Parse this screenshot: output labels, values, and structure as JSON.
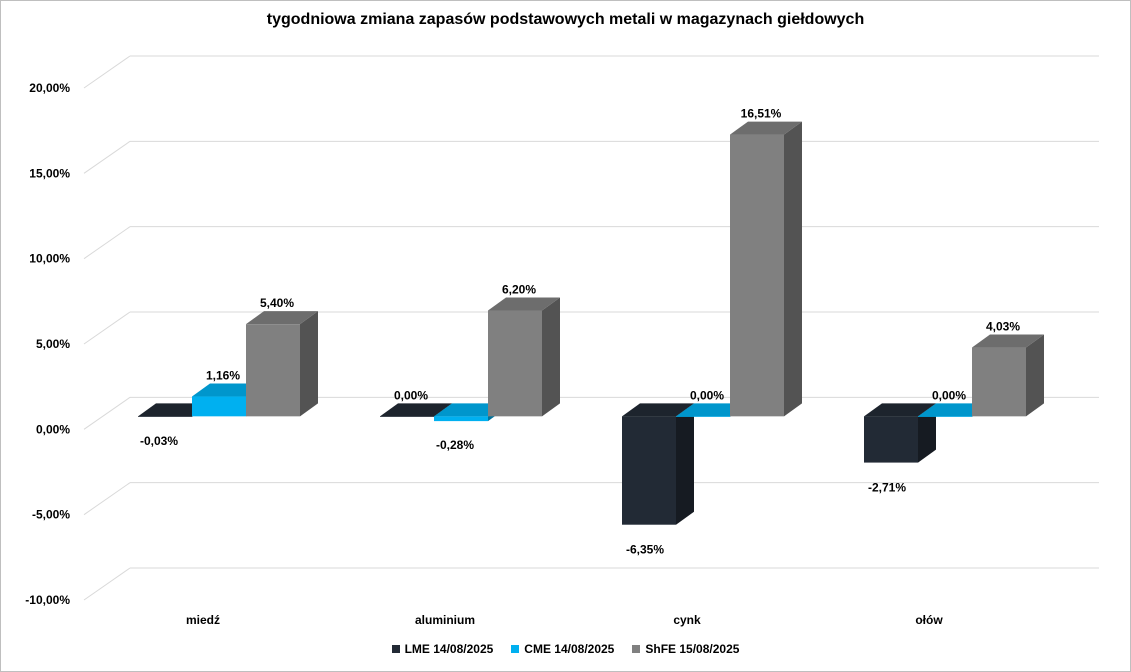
{
  "chart_data": {
    "type": "bar",
    "title": "tygodniowa zmiana zapasów podstawowych metali w magazynach giełdowych",
    "categories": [
      "miedź",
      "aluminium",
      "cynk",
      "ołów"
    ],
    "series": [
      {
        "name": "LME 14/08/2025",
        "color": "#222a35",
        "values": [
          -0.03,
          0.0,
          -6.35,
          -2.71
        ],
        "labels": [
          "-0,03%",
          "0,00%",
          "-6,35%",
          "-2,71%"
        ]
      },
      {
        "name": "CME 14/08/2025",
        "color": "#00b0f0",
        "values": [
          1.16,
          -0.28,
          0.0,
          0.0
        ],
        "labels": [
          "1,16%",
          "-0,28%",
          "0,00%",
          "0,00%"
        ]
      },
      {
        "name": "ShFE 15/08/2025",
        "color": "#808080",
        "values": [
          5.4,
          6.2,
          16.51,
          4.03
        ],
        "labels": [
          "5,40%",
          "6,20%",
          "16,51%",
          "4,03%"
        ]
      }
    ],
    "ylim": [
      -10,
      20
    ],
    "yticks": [
      20,
      15,
      10,
      5,
      0,
      -5,
      -10
    ],
    "ytick_labels": [
      "20,00%",
      "15,00%",
      "10,00%",
      "5,00%",
      "0,00%",
      "-5,00%",
      "-10,00%"
    ],
    "grid": true,
    "legend_position": "bottom"
  }
}
